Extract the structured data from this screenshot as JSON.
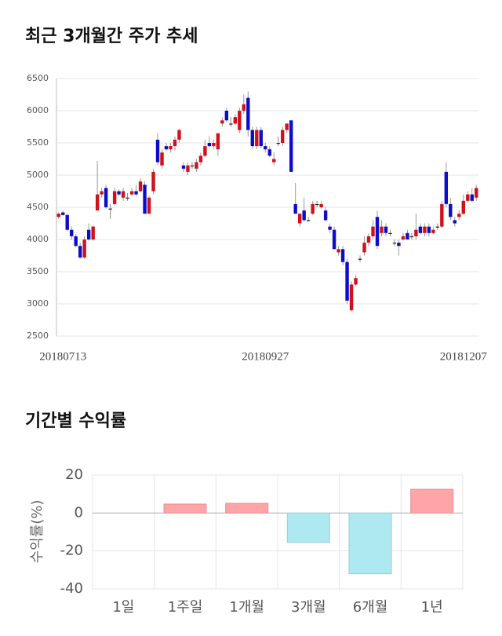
{
  "chart_data": [
    {
      "type": "candlestick",
      "title": "최근 3개월간 주가 추세",
      "categories": [
        null,
        "20180713",
        null,
        null,
        null,
        null,
        null,
        null,
        null,
        null,
        null,
        null,
        null,
        null,
        null,
        null,
        null,
        null,
        null,
        null,
        null,
        null,
        null,
        null,
        null,
        null,
        null,
        null,
        null,
        null,
        null,
        null,
        null,
        null,
        null,
        null,
        null,
        null,
        null,
        null,
        null,
        null,
        null,
        null,
        null,
        null,
        null,
        null,
        "20180927",
        null,
        null,
        null,
        null,
        null,
        null,
        null,
        null,
        null,
        null,
        null,
        null,
        null,
        null,
        null,
        null,
        null,
        null,
        null,
        null,
        null,
        null,
        null,
        null,
        null,
        null,
        null,
        null,
        null,
        null,
        null,
        null,
        null,
        null,
        null,
        null,
        null,
        null,
        null,
        null,
        null,
        null,
        null,
        null,
        null,
        "20181207",
        null,
        null,
        null
      ],
      "open": [
        4350,
        4420,
        4380,
        4150,
        4050,
        3900,
        3720,
        4150,
        4000,
        4450,
        4700,
        4800,
        4480,
        4550,
        4750,
        4650,
        4650,
        4700,
        4750,
        4750,
        4850,
        4400,
        4750,
        5550,
        5150,
        5450,
        5400,
        5450,
        5550,
        5150,
        5050,
        5150,
        5100,
        5200,
        5300,
        5500,
        5450,
        5400,
        5800,
        6000,
        5800,
        5800,
        5700,
        6000,
        6200,
        5700,
        5450,
        5700,
        5450,
        5400,
        5200,
        5500,
        5500,
        5700,
        5850,
        4550,
        4250,
        4450,
        4300,
        4400,
        4550,
        4500,
        4450,
        4200,
        4150,
        3800,
        3850,
        3650,
        2900,
        3300,
        3700,
        3800,
        3950,
        4050,
        4350,
        4100,
        4200,
        4100,
        3950,
        3950,
        4000,
        4100,
        4050,
        4050,
        4200,
        4100,
        4200,
        4100,
        4200,
        4200,
        5050,
        4550,
        4300,
        4350,
        4400,
        4600,
        4700,
        4650
      ],
      "high": [
        4420,
        4450,
        4400,
        4200,
        4080,
        3950,
        4050,
        4250,
        4220,
        5220,
        4800,
        4850,
        4550,
        4800,
        4780,
        4800,
        4720,
        4800,
        4850,
        4950,
        4900,
        4680,
        5100,
        5650,
        5400,
        5500,
        5500,
        5600,
        5720,
        5200,
        5200,
        5200,
        5250,
        5350,
        5550,
        5600,
        5550,
        5650,
        5900,
        6050,
        5900,
        5950,
        6050,
        6250,
        6300,
        5750,
        5750,
        5750,
        5500,
        5450,
        5350,
        5600,
        5750,
        5800,
        5850,
        4880,
        4400,
        4650,
        4350,
        4600,
        4600,
        4600,
        4500,
        4250,
        4200,
        3900,
        3900,
        3700,
        3350,
        3450,
        3750,
        4050,
        4100,
        4300,
        4450,
        4300,
        4250,
        4150,
        4000,
        4000,
        4100,
        4150,
        4100,
        4400,
        4250,
        4250,
        4250,
        4200,
        4250,
        4600,
        5200,
        4650,
        4350,
        4450,
        4700,
        4750,
        4800,
        4850
      ],
      "low": [
        4320,
        4370,
        4130,
        4000,
        3880,
        3700,
        3700,
        3980,
        3980,
        4450,
        4650,
        4480,
        4320,
        4530,
        4680,
        4600,
        4600,
        4680,
        4680,
        4730,
        4400,
        4400,
        4700,
        5150,
        5100,
        5380,
        5350,
        5380,
        5500,
        5050,
        5000,
        5100,
        5050,
        5150,
        5280,
        5420,
        5400,
        5300,
        5750,
        5820,
        5750,
        5780,
        5650,
        5950,
        5600,
        5400,
        5400,
        5420,
        5350,
        5280,
        5150,
        5450,
        5450,
        5650,
        5050,
        4400,
        4200,
        4280,
        4280,
        4380,
        4500,
        4480,
        4280,
        4100,
        3850,
        3750,
        3600,
        3000,
        2880,
        3280,
        3650,
        3750,
        3900,
        4000,
        3850,
        4050,
        4050,
        4050,
        3900,
        3750,
        3980,
        4000,
        4000,
        4000,
        4080,
        4050,
        4050,
        4080,
        4150,
        4180,
        4500,
        4300,
        4200,
        4300,
        4380,
        4580,
        4580,
        4600
      ],
      "close": [
        4400,
        4380,
        4150,
        4050,
        3900,
        3720,
        4000,
        4000,
        4200,
        4700,
        4750,
        4500,
        4480,
        4750,
        4700,
        4750,
        4650,
        4750,
        4700,
        4900,
        4400,
        4650,
        5050,
        5200,
        5350,
        5400,
        5450,
        5550,
        5700,
        5100,
        5150,
        5150,
        5200,
        5300,
        5450,
        5450,
        5500,
        5650,
        5850,
        5850,
        5800,
        5900,
        6000,
        6100,
        5700,
        5450,
        5700,
        5450,
        5400,
        5300,
        5250,
        5500,
        5700,
        5800,
        5050,
        4400,
        4400,
        4300,
        4300,
        4550,
        4550,
        4550,
        4300,
        4150,
        3850,
        3850,
        3650,
        3050,
        3300,
        3400,
        3700,
        3950,
        4050,
        4200,
        3900,
        4200,
        4100,
        4100,
        3950,
        3900,
        4050,
        4000,
        4050,
        4150,
        4100,
        4200,
        4100,
        4150,
        4200,
        4550,
        4550,
        4350,
        4250,
        4400,
        4600,
        4700,
        4600,
        4800
      ],
      "up_color": "#d0111b",
      "down_color": "#0d0dc9",
      "doji_color": "#222222",
      "ylim": [
        2500,
        6500
      ],
      "yticks": [
        2500,
        3000,
        3500,
        4000,
        4500,
        5000,
        5500,
        6000,
        6500
      ],
      "grid": true
    },
    {
      "type": "bar",
      "title": "기간별 수익률",
      "y_label": "수익률(%)",
      "categories": [
        "1일",
        "1주일",
        "1개월",
        "3개월",
        "6개월",
        "1년"
      ],
      "values": [
        0,
        4.7,
        5.1,
        -15.5,
        -32,
        12.5
      ],
      "positive_color": "#ffa5a8",
      "negative_color": "#aee9f1",
      "ylim": [
        -40,
        20
      ],
      "yticks": [
        -40,
        -20,
        0,
        20
      ],
      "grid": true
    }
  ]
}
